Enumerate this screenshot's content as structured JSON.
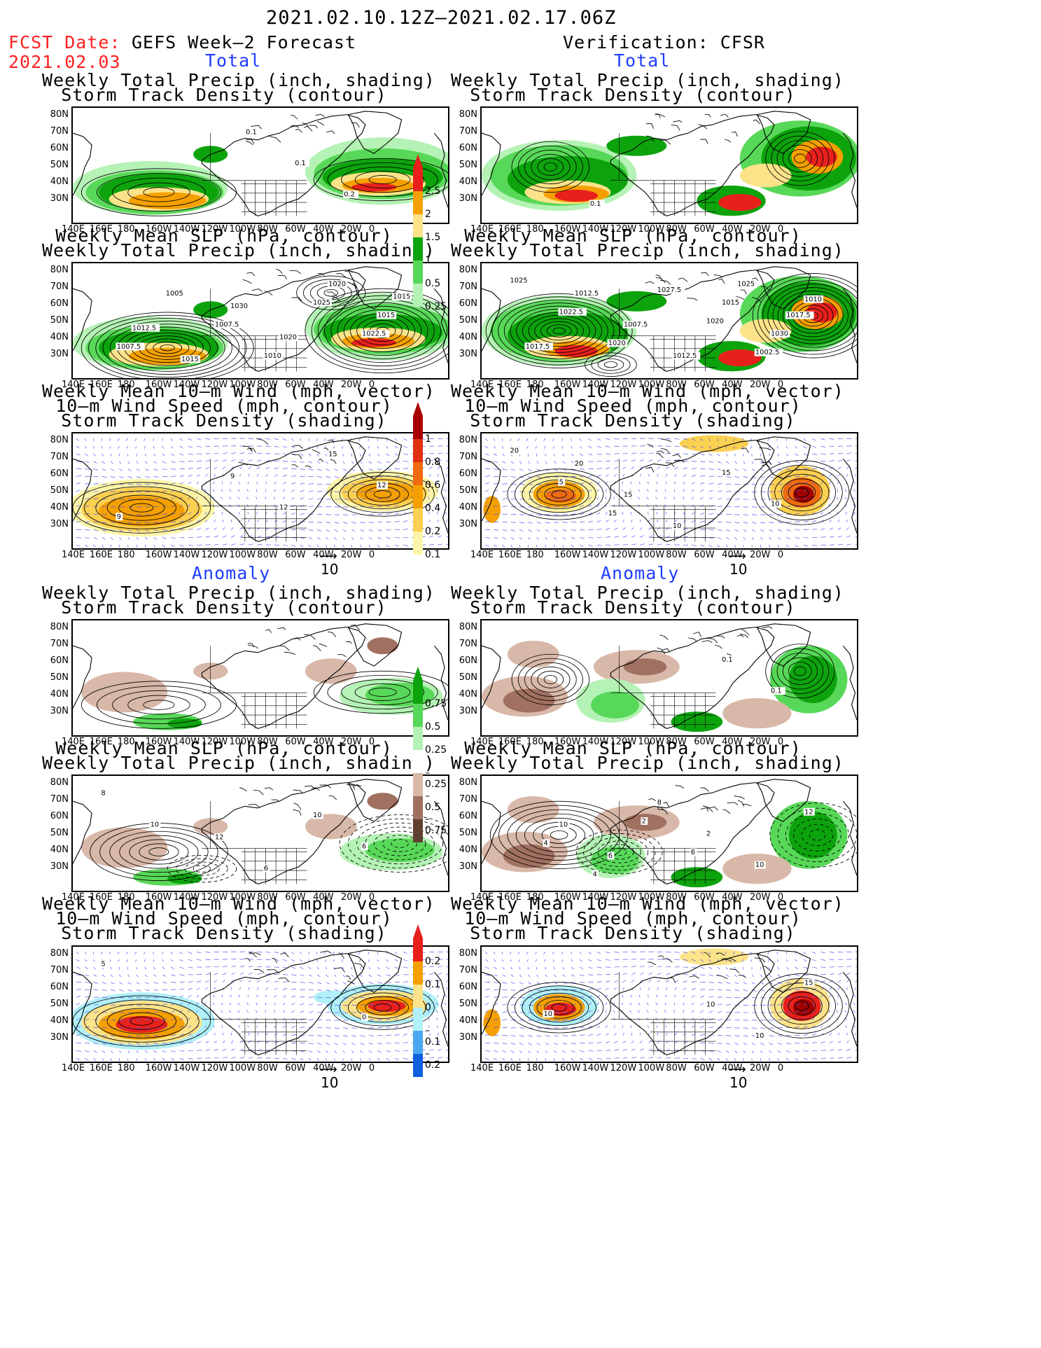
{
  "header": {
    "date_range": "2021.02.10.12Z–2021.02.17.06Z",
    "fcst_label": "FCST Date:",
    "fcst_date": "2021.02.03",
    "left_model": "GEFS Week–2 Forecast",
    "right_model": "Verification: CFSR"
  },
  "sections": {
    "total": "Total",
    "anomaly": "Anomaly"
  },
  "titles": {
    "precip_storm": [
      "Weekly Total Precip (inch, shading)",
      "Storm Track Density (contour)"
    ],
    "slp_precip": [
      "Weekly Mean SLP (hPa, contour)",
      "Weekly Total Precip (inch, shading)"
    ],
    "wind_storm": [
      "Weekly Mean 10–m Wind (mph, vector)",
      "10–m Wind Speed (mph, contour)",
      "Storm Track Density (shading)"
    ]
  },
  "axes": {
    "lat_labels": [
      "80N",
      "70N",
      "60N",
      "50N",
      "40N",
      "30N"
    ],
    "lon_labels": [
      "140E",
      "160E",
      "180",
      "160W",
      "140W",
      "120W",
      "100W",
      "80W",
      "60W",
      "40W",
      "20W",
      "0"
    ]
  },
  "vector_reference": "10",
  "colorbars": {
    "precip_total": {
      "labels": [
        "2.5",
        "2",
        "1.5",
        "1",
        "0.5",
        "0.25"
      ],
      "colors": [
        "#e8201c",
        "#f5a000",
        "#fce38a",
        "#0da30d",
        "#58d858",
        "#b5f2b5"
      ]
    },
    "storm_total": {
      "labels": [
        "1",
        "0.8",
        "0.6",
        "0.4",
        "0.2",
        "0.1"
      ],
      "colors": [
        "#a80000",
        "#e03010",
        "#f06a10",
        "#f5a000",
        "#fcd050",
        "#fdf5a8"
      ]
    },
    "precip_anom": {
      "labels": [
        "0.75",
        "0.5",
        "0.25",
        "–0.25",
        "–0.5",
        "–0.75"
      ],
      "colors_pos": [
        "#0da30d",
        "#58d858",
        "#b5f2b5"
      ],
      "colors_neg": [
        "#d8b8a8",
        "#a07060",
        "#604030"
      ]
    },
    "storm_anom": {
      "labels": [
        "0.2",
        "0.1",
        "0",
        "–0.1",
        "–0.2"
      ],
      "colors": [
        "#e8201c",
        "#f5a000",
        "#fce38a",
        "#b0f0f8",
        "#4aa8f0",
        "#1060e0"
      ]
    }
  },
  "contour_labels": {
    "L1": [
      "0.1",
      "0.1",
      "0.2"
    ],
    "R1": [
      "0.1"
    ],
    "L2": [
      "1015",
      "1012.5",
      "1015",
      "1030",
      "1020",
      "1020",
      "1015",
      "1007.5",
      "1005",
      "1007.5",
      "1010",
      "1025",
      "1022.5"
    ],
    "R2": [
      "1025",
      "1017.5",
      "1017.5",
      "1012.5",
      "1007.5",
      "1012.5",
      "1015",
      "1030",
      "1025",
      "1022.5",
      "1020",
      "1027.5",
      "1020",
      "1002.5",
      "1010"
    ],
    "L3": [
      "9",
      "12",
      "15",
      "12",
      "9"
    ],
    "R3": [
      "20",
      "15",
      "10",
      "15",
      "10",
      "20",
      "5",
      "15"
    ],
    "L4": [],
    "R4": [
      "0.1",
      "0.1"
    ],
    "L5": [
      "12",
      "6",
      "10",
      "6",
      "8",
      "10"
    ],
    "R5": [
      "10",
      "6",
      "8",
      "2",
      "10",
      "12",
      "4",
      "4",
      "2",
      "6"
    ],
    "L6": [
      "0",
      "5"
    ],
    "R6": [
      "10",
      "10",
      "15",
      "10"
    ]
  }
}
